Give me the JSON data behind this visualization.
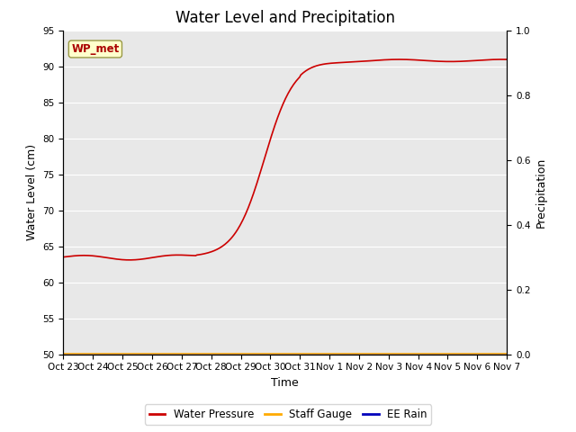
{
  "title": "Water Level and Precipitation",
  "xlabel": "Time",
  "ylabel_left": "Water Level (cm)",
  "ylabel_right": "Precipitation",
  "ylim_left": [
    50,
    95
  ],
  "ylim_right": [
    0.0,
    1.0
  ],
  "yticks_left": [
    50,
    55,
    60,
    65,
    70,
    75,
    80,
    85,
    90,
    95
  ],
  "yticks_right": [
    0.0,
    0.2,
    0.4,
    0.6,
    0.8,
    1.0
  ],
  "xtick_labels": [
    "Oct 23",
    "Oct 24",
    "Oct 25",
    "Oct 26",
    "Oct 27",
    "Oct 28",
    "Oct 29",
    "Oct 30",
    "Oct 31",
    "Nov 1",
    "Nov 2",
    "Nov 3",
    "Nov 4",
    "Nov 5",
    "Nov 6",
    "Nov 7"
  ],
  "annotation_text": "WP_met",
  "bg_color": "#e8e8e8",
  "line_color_wp": "#cc0000",
  "line_color_sg": "#ffaa00",
  "line_color_rain": "#0000bb",
  "legend_labels": [
    "Water Pressure",
    "Staff Gauge",
    "EE Rain"
  ],
  "title_fontsize": 12,
  "tick_fontsize": 7.5,
  "label_fontsize": 9
}
